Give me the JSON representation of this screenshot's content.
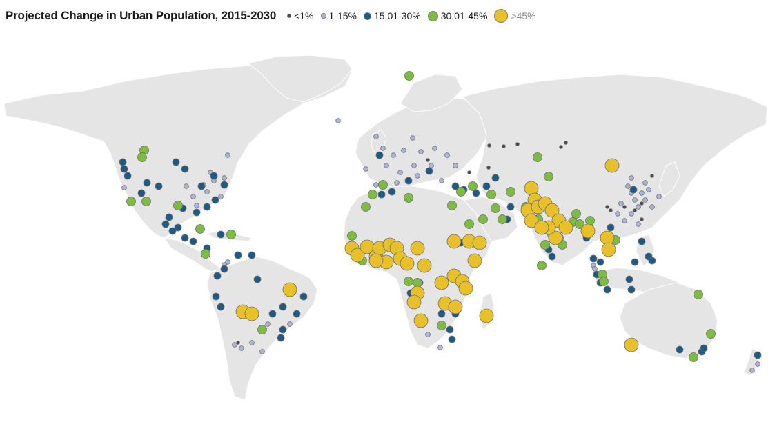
{
  "title": "Projected Change in Urban Population, 2015-2030",
  "legend": [
    {
      "key": "lt1",
      "label": "<1%",
      "color": "#4a4a4a",
      "size": 6
    },
    {
      "key": "b1_15",
      "label": "1-15%",
      "color": "#a9b6d6",
      "size": 8
    },
    {
      "key": "b15_30",
      "label": "15.01-30%",
      "color": "#1f5a85",
      "size": 11
    },
    {
      "key": "b30_45",
      "label": "30.01-45%",
      "color": "#7dbb42",
      "size": 15
    },
    {
      "key": "gt45",
      "label": ">45%",
      "color": "#e8c12a",
      "size": 20
    }
  ]
}
